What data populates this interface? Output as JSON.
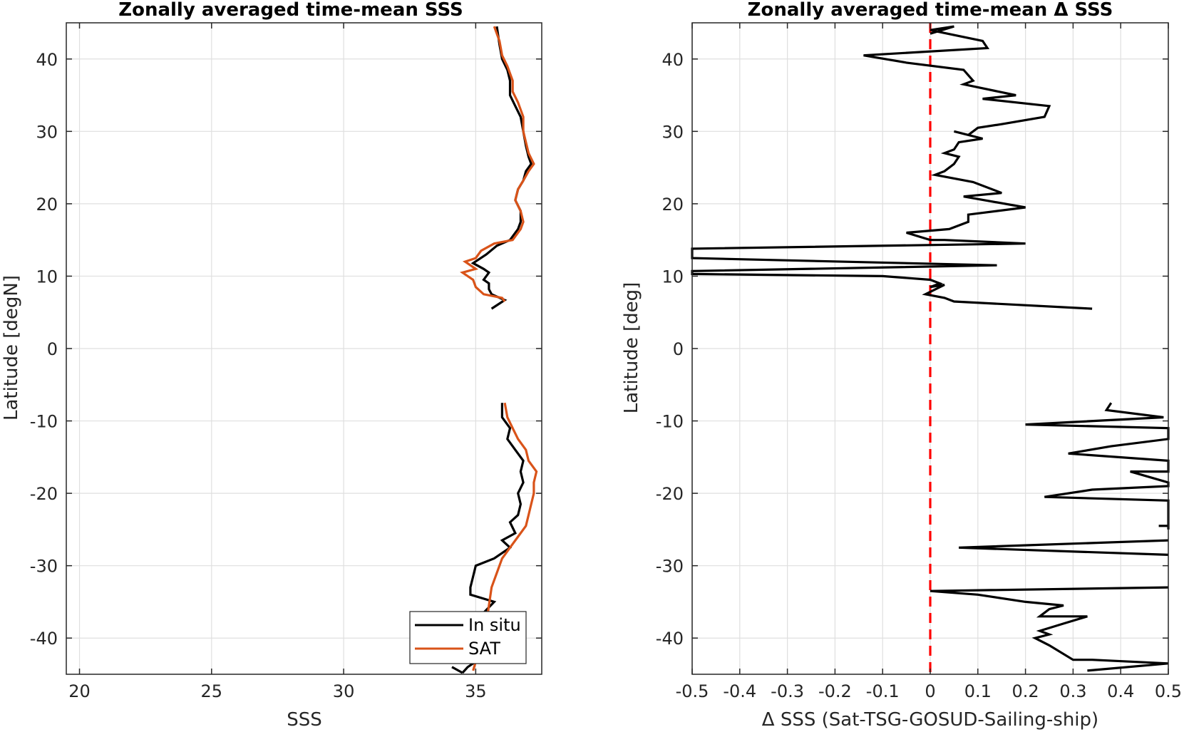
{
  "chart_data": [
    {
      "type": "line",
      "title": "Zonally averaged time-mean SSS",
      "xlabel": "SSS",
      "ylabel": "Latitude [degN]",
      "xlim": [
        19.5,
        37.5
      ],
      "ylim": [
        -45,
        45
      ],
      "xticks": [
        20,
        25,
        30,
        35
      ],
      "yticks": [
        -40,
        -30,
        -20,
        -10,
        0,
        10,
        20,
        30,
        40
      ],
      "grid": true,
      "legend_position": "bottom-right",
      "series": [
        {
          "name": "In situ",
          "color": "#000000",
          "segments": [
            [
              [
                35.8,
                44.5
              ],
              [
                35.9,
                42
              ],
              [
                36.0,
                40
              ],
              [
                36.2,
                38.5
              ],
              [
                36.3,
                37
              ],
              [
                36.3,
                35
              ],
              [
                36.5,
                33.5
              ],
              [
                36.7,
                32
              ],
              [
                36.8,
                30
              ],
              [
                36.9,
                28
              ],
              [
                37.0,
                26.5
              ],
              [
                37.1,
                25.5
              ],
              [
                36.9,
                24.5
              ],
              [
                36.8,
                23.2
              ],
              [
                36.6,
                22
              ],
              [
                36.5,
                20.5
              ],
              [
                36.7,
                19
              ],
              [
                36.7,
                17.5
              ],
              [
                36.6,
                16.5
              ],
              [
                36.3,
                15
              ],
              [
                35.8,
                14.2
              ],
              [
                35.4,
                13
              ],
              [
                34.9,
                11.8
              ],
              [
                35.3,
                11
              ],
              [
                35.5,
                10.5
              ],
              [
                35.3,
                9.5
              ],
              [
                35.5,
                9
              ],
              [
                35.5,
                8.2
              ],
              [
                35.6,
                7.5
              ],
              [
                36.1,
                6.7
              ],
              [
                35.6,
                5.5
              ]
            ],
            [
              [
                36.0,
                -7.5
              ],
              [
                36.0,
                -9.5
              ],
              [
                36.3,
                -11
              ],
              [
                36.2,
                -12.5
              ],
              [
                36.5,
                -14
              ],
              [
                36.8,
                -15.5
              ],
              [
                36.7,
                -17
              ],
              [
                36.8,
                -18.5
              ],
              [
                36.6,
                -20
              ],
              [
                36.7,
                -21.5
              ],
              [
                36.6,
                -23
              ],
              [
                36.3,
                -24
              ],
              [
                36.5,
                -25.5
              ],
              [
                36.0,
                -26.5
              ],
              [
                36.3,
                -27.5
              ],
              [
                35.7,
                -29
              ],
              [
                35.0,
                -30
              ],
              [
                34.9,
                -31.5
              ],
              [
                34.8,
                -33
              ],
              [
                34.8,
                -34
              ],
              [
                35.7,
                -35
              ],
              [
                35.3,
                -36.5
              ],
              [
                35.3,
                -38
              ],
              [
                35.2,
                -40
              ],
              [
                35.1,
                -42
              ],
              [
                34.9,
                -43.5
              ],
              [
                34.7,
                -44
              ],
              [
                34.5,
                -44.8
              ]
            ],
            [
              [
                34.1,
                -44
              ],
              [
                34.5,
                -44.8
              ]
            ]
          ]
        },
        {
          "name": "SAT",
          "color": "#d95319",
          "segments": [
            [
              [
                35.7,
                44.5
              ],
              [
                35.9,
                42.5
              ],
              [
                36.0,
                40.5
              ],
              [
                36.2,
                39
              ],
              [
                36.4,
                37
              ],
              [
                36.4,
                35.5
              ],
              [
                36.6,
                34
              ],
              [
                36.8,
                32
              ],
              [
                36.8,
                30
              ],
              [
                36.9,
                28.5
              ],
              [
                37.0,
                27
              ],
              [
                37.2,
                25.5
              ],
              [
                37.0,
                24.5
              ],
              [
                36.8,
                23.2
              ],
              [
                36.6,
                22
              ],
              [
                36.5,
                20.5
              ],
              [
                36.7,
                19
              ],
              [
                36.8,
                17.5
              ],
              [
                36.7,
                16.5
              ],
              [
                36.4,
                15
              ],
              [
                35.7,
                14.5
              ],
              [
                35.2,
                13.5
              ],
              [
                35.0,
                12.5
              ],
              [
                34.6,
                12
              ],
              [
                35.0,
                11
              ],
              [
                34.5,
                10.5
              ],
              [
                34.9,
                9.5
              ],
              [
                35.0,
                8.5
              ],
              [
                35.3,
                7.5
              ],
              [
                36.0,
                7
              ],
              [
                36.1,
                6.5
              ]
            ],
            [
              [
                36.1,
                -7.5
              ],
              [
                36.2,
                -9.5
              ],
              [
                36.4,
                -11
              ],
              [
                36.6,
                -12.5
              ],
              [
                36.9,
                -14
              ],
              [
                37.0,
                -15.5
              ],
              [
                37.3,
                -17
              ],
              [
                37.2,
                -18.5
              ],
              [
                37.2,
                -20
              ],
              [
                37.1,
                -21.5
              ],
              [
                37.0,
                -23
              ],
              [
                36.9,
                -24.5
              ],
              [
                36.6,
                -26
              ],
              [
                36.3,
                -27.5
              ],
              [
                36.0,
                -29
              ],
              [
                35.8,
                -31
              ],
              [
                35.6,
                -33
              ],
              [
                35.5,
                -35.5
              ],
              [
                35.4,
                -38
              ],
              [
                35.2,
                -40
              ],
              [
                35.1,
                -42
              ],
              [
                34.9,
                -44.5
              ]
            ]
          ]
        }
      ]
    },
    {
      "type": "line",
      "title": "Zonally averaged time-mean Δ SSS",
      "xlabel": "Δ SSS (Sat-TSG-GOSUD-Sailing-ship)",
      "ylabel": "Latitude [deg]",
      "xlim": [
        -0.5,
        0.5
      ],
      "ylim": [
        -45,
        45
      ],
      "xticks": [
        -0.5,
        -0.4,
        -0.3,
        -0.2,
        -0.1,
        0,
        0.1,
        0.2,
        0.3,
        0.4,
        0.5
      ],
      "yticks": [
        -40,
        -30,
        -20,
        -10,
        0,
        10,
        20,
        30,
        40
      ],
      "grid": true,
      "reference_line": {
        "x": 0,
        "color": "#ff0000",
        "style": "dashed"
      },
      "series": [
        {
          "name": "",
          "color": "#000000",
          "segments": [
            [
              [
                0.0,
                43.5
              ],
              [
                0.05,
                44.5
              ],
              [
                0.0,
                44
              ],
              [
                0.11,
                42.5
              ],
              [
                0.12,
                41.5
              ],
              [
                -0.14,
                40.5
              ],
              [
                -0.05,
                39.5
              ],
              [
                0.07,
                38.5
              ],
              [
                0.09,
                37
              ],
              [
                0.07,
                36.5
              ],
              [
                0.18,
                35
              ],
              [
                0.11,
                34.5
              ],
              [
                0.25,
                33.5
              ],
              [
                0.24,
                32
              ],
              [
                0.15,
                31
              ],
              [
                0.1,
                30.5
              ],
              [
                0.08,
                29.5
              ],
              [
                0.05,
                30
              ],
              [
                0.11,
                29
              ],
              [
                0.06,
                28.5
              ],
              [
                0.05,
                27.5
              ],
              [
                0.03,
                27
              ],
              [
                0.06,
                26.5
              ],
              [
                0.05,
                25.5
              ],
              [
                0.03,
                24.5
              ],
              [
                0.01,
                24
              ],
              [
                0.09,
                23
              ],
              [
                0.15,
                21.5
              ],
              [
                0.07,
                21
              ],
              [
                0.2,
                19.5
              ],
              [
                0.08,
                18.5
              ],
              [
                0.08,
                17.5
              ],
              [
                0.04,
                16.5
              ],
              [
                -0.05,
                16
              ],
              [
                0.0,
                15
              ],
              [
                0.03,
                15
              ],
              [
                0.2,
                14.5
              ],
              [
                -0.5,
                13.8
              ],
              [
                -0.5,
                12.5
              ],
              [
                0.14,
                11.5
              ],
              [
                -0.5,
                10.7
              ],
              [
                -0.5,
                10.3
              ],
              [
                -0.1,
                10
              ],
              [
                0.0,
                9.5
              ],
              [
                0.02,
                9
              ],
              [
                0.0,
                8.5
              ],
              [
                0.03,
                8.8
              ],
              [
                -0.01,
                7.5
              ],
              [
                0.03,
                7
              ],
              [
                0.05,
                6.5
              ],
              [
                0.34,
                5.5
              ]
            ],
            [
              [
                0.38,
                -7.5
              ],
              [
                0.37,
                -8.5
              ],
              [
                0.49,
                -9.5
              ],
              [
                0.2,
                -10.5
              ],
              [
                0.5,
                -11
              ],
              [
                0.5,
                -12.5
              ],
              [
                0.38,
                -13.5
              ],
              [
                0.29,
                -14.5
              ],
              [
                0.5,
                -15.5
              ],
              [
                0.5,
                -17
              ],
              [
                0.42,
                -17
              ],
              [
                0.5,
                -18.5
              ],
              [
                0.5,
                -19
              ],
              [
                0.34,
                -19.5
              ],
              [
                0.24,
                -20.5
              ],
              [
                0.5,
                -21
              ],
              [
                0.5,
                -25
              ]
            ],
            [
              [
                0.48,
                -24.5
              ],
              [
                0.5,
                -24.5
              ]
            ],
            [
              [
                0.5,
                -26.5
              ],
              [
                0.06,
                -27.5
              ],
              [
                0.5,
                -28.5
              ]
            ],
            [
              [
                0.5,
                -33
              ],
              [
                0.0,
                -33.5
              ],
              [
                0.1,
                -34
              ],
              [
                0.2,
                -35
              ],
              [
                0.28,
                -35.5
              ],
              [
                0.25,
                -36
              ],
              [
                0.23,
                -37
              ],
              [
                0.33,
                -37
              ],
              [
                0.28,
                -38
              ],
              [
                0.23,
                -39
              ],
              [
                0.25,
                -39.5
              ],
              [
                0.22,
                -40
              ],
              [
                0.25,
                -41
              ],
              [
                0.3,
                -43
              ],
              [
                0.34,
                -43
              ],
              [
                0.5,
                -43.5
              ],
              [
                0.33,
                -44.5
              ]
            ]
          ]
        }
      ]
    }
  ],
  "legend": {
    "entries": [
      "In situ",
      "SAT"
    ]
  }
}
